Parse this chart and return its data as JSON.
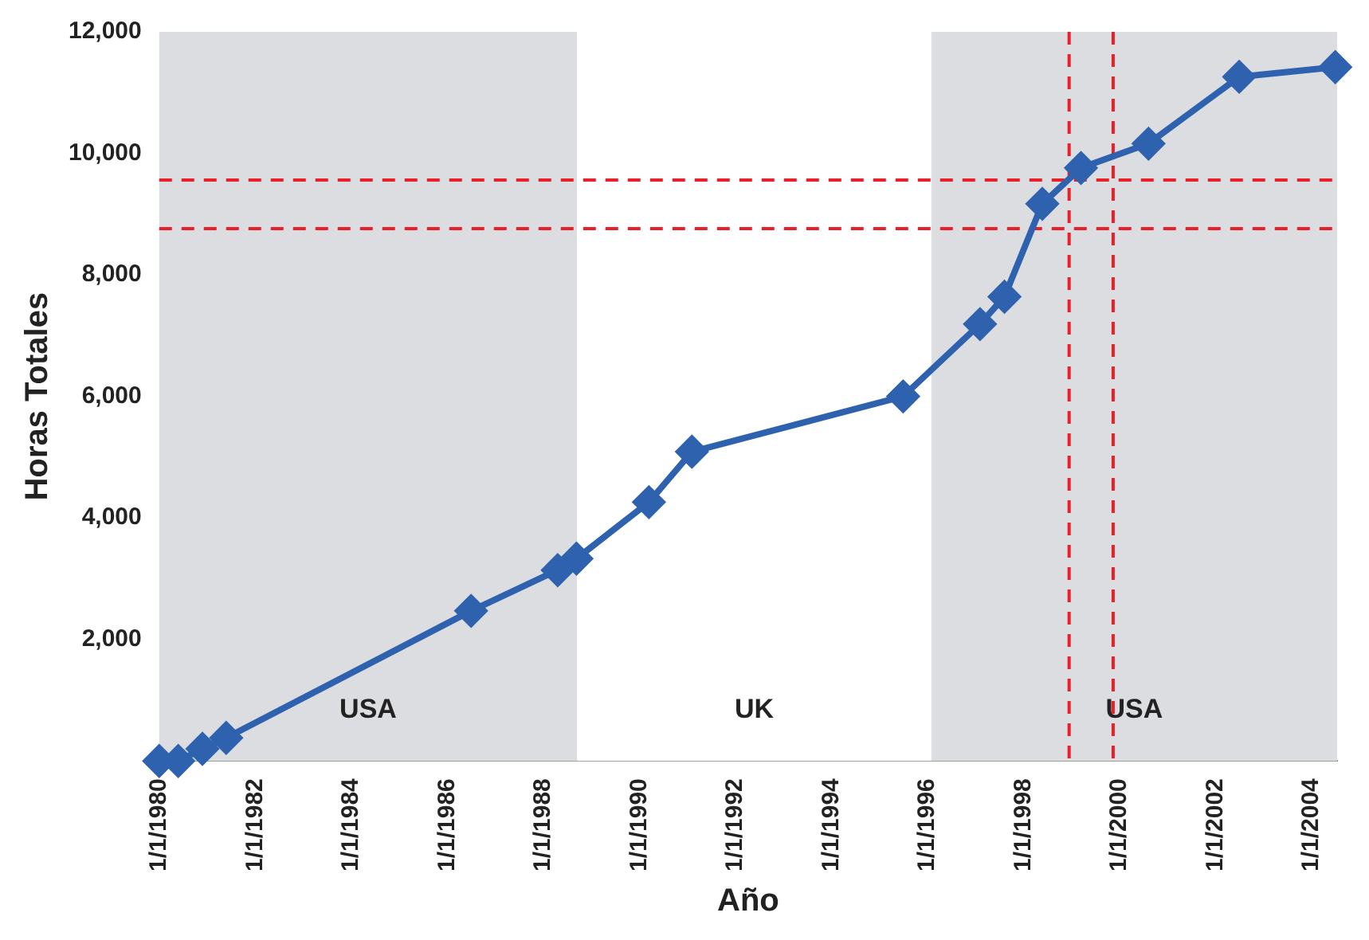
{
  "chart_data": {
    "type": "line",
    "xlabel": "Año",
    "ylabel": "Horas Totales",
    "x": [
      "1980-01-01",
      "1980-05-25",
      "1980-11-25",
      "1981-05-25",
      "1986-07-01",
      "1988-04-20",
      "1988-09-10",
      "1990-03-15",
      "1991-02-05",
      "1995-07-01",
      "1997-02-05",
      "1997-08-10",
      "1998-05-25",
      "1999-03-15",
      "2000-08-10",
      "2002-07-01",
      "2004-07-01"
    ],
    "series": [
      {
        "color": "#2f62ae",
        "values": [
          0,
          0,
          200,
          380,
          2470,
          3140,
          3330,
          4260,
          5090,
          6000,
          7190,
          7640,
          9170,
          9760,
          10160,
          11260,
          11420
        ]
      }
    ],
    "xlim": [
      "1980-01-01",
      "2004-07-15"
    ],
    "xticks": [
      {
        "value": "1980-01-01",
        "label": "1/1/1980"
      },
      {
        "value": "1982-01-01",
        "label": "1/1/1982"
      },
      {
        "value": "1984-01-01",
        "label": "1/1/1984"
      },
      {
        "value": "1986-01-01",
        "label": "1/1/1986"
      },
      {
        "value": "1988-01-01",
        "label": "1/1/1988"
      },
      {
        "value": "1990-01-01",
        "label": "1/1/1990"
      },
      {
        "value": "1992-01-01",
        "label": "1/1/1992"
      },
      {
        "value": "1994-01-01",
        "label": "1/1/1994"
      },
      {
        "value": "1996-01-01",
        "label": "1/1/1996"
      },
      {
        "value": "1998-01-01",
        "label": "1/1/1998"
      },
      {
        "value": "2000-01-01",
        "label": "1/1/2000"
      },
      {
        "value": "2002-01-01",
        "label": "1/1/2002"
      },
      {
        "value": "2004-01-01",
        "label": "1/1/2004"
      }
    ],
    "ylim": [
      0,
      12000
    ],
    "yticks": [
      {
        "value": 2000,
        "label": "2,000"
      },
      {
        "value": 4000,
        "label": "4,000"
      },
      {
        "value": 6000,
        "label": "6,000"
      },
      {
        "value": 8000,
        "label": "8,000"
      },
      {
        "value": 10000,
        "label": "10,000"
      },
      {
        "value": 12000,
        "label": "12,000"
      }
    ],
    "bands": [
      {
        "axis": "x",
        "from": "1980-01-01",
        "to": "1988-09-15",
        "label": "USA",
        "color": "#dcdde0"
      },
      {
        "axis": "x",
        "from": "1988-09-15",
        "to": "1996-02-01",
        "label": "UK",
        "color": "#ffffff"
      },
      {
        "axis": "x",
        "from": "1996-02-01",
        "to": "2004-07-15",
        "label": "USA",
        "color": "#dcdde0"
      }
    ],
    "ref_lines": [
      {
        "axis": "y",
        "value": 9560,
        "color": "#e8202a",
        "line_style": "dashed"
      },
      {
        "axis": "y",
        "value": 8760,
        "color": "#e8202a",
        "line_style": "dashed"
      },
      {
        "axis": "x",
        "value": "1998-12-15",
        "color": "#e8202a",
        "line_style": "dashed"
      },
      {
        "axis": "x",
        "value": "1999-11-15",
        "color": "#e8202a",
        "line_style": "dashed"
      }
    ],
    "grid": false,
    "legend": false,
    "marker": "diamond",
    "line_style": "solid"
  }
}
